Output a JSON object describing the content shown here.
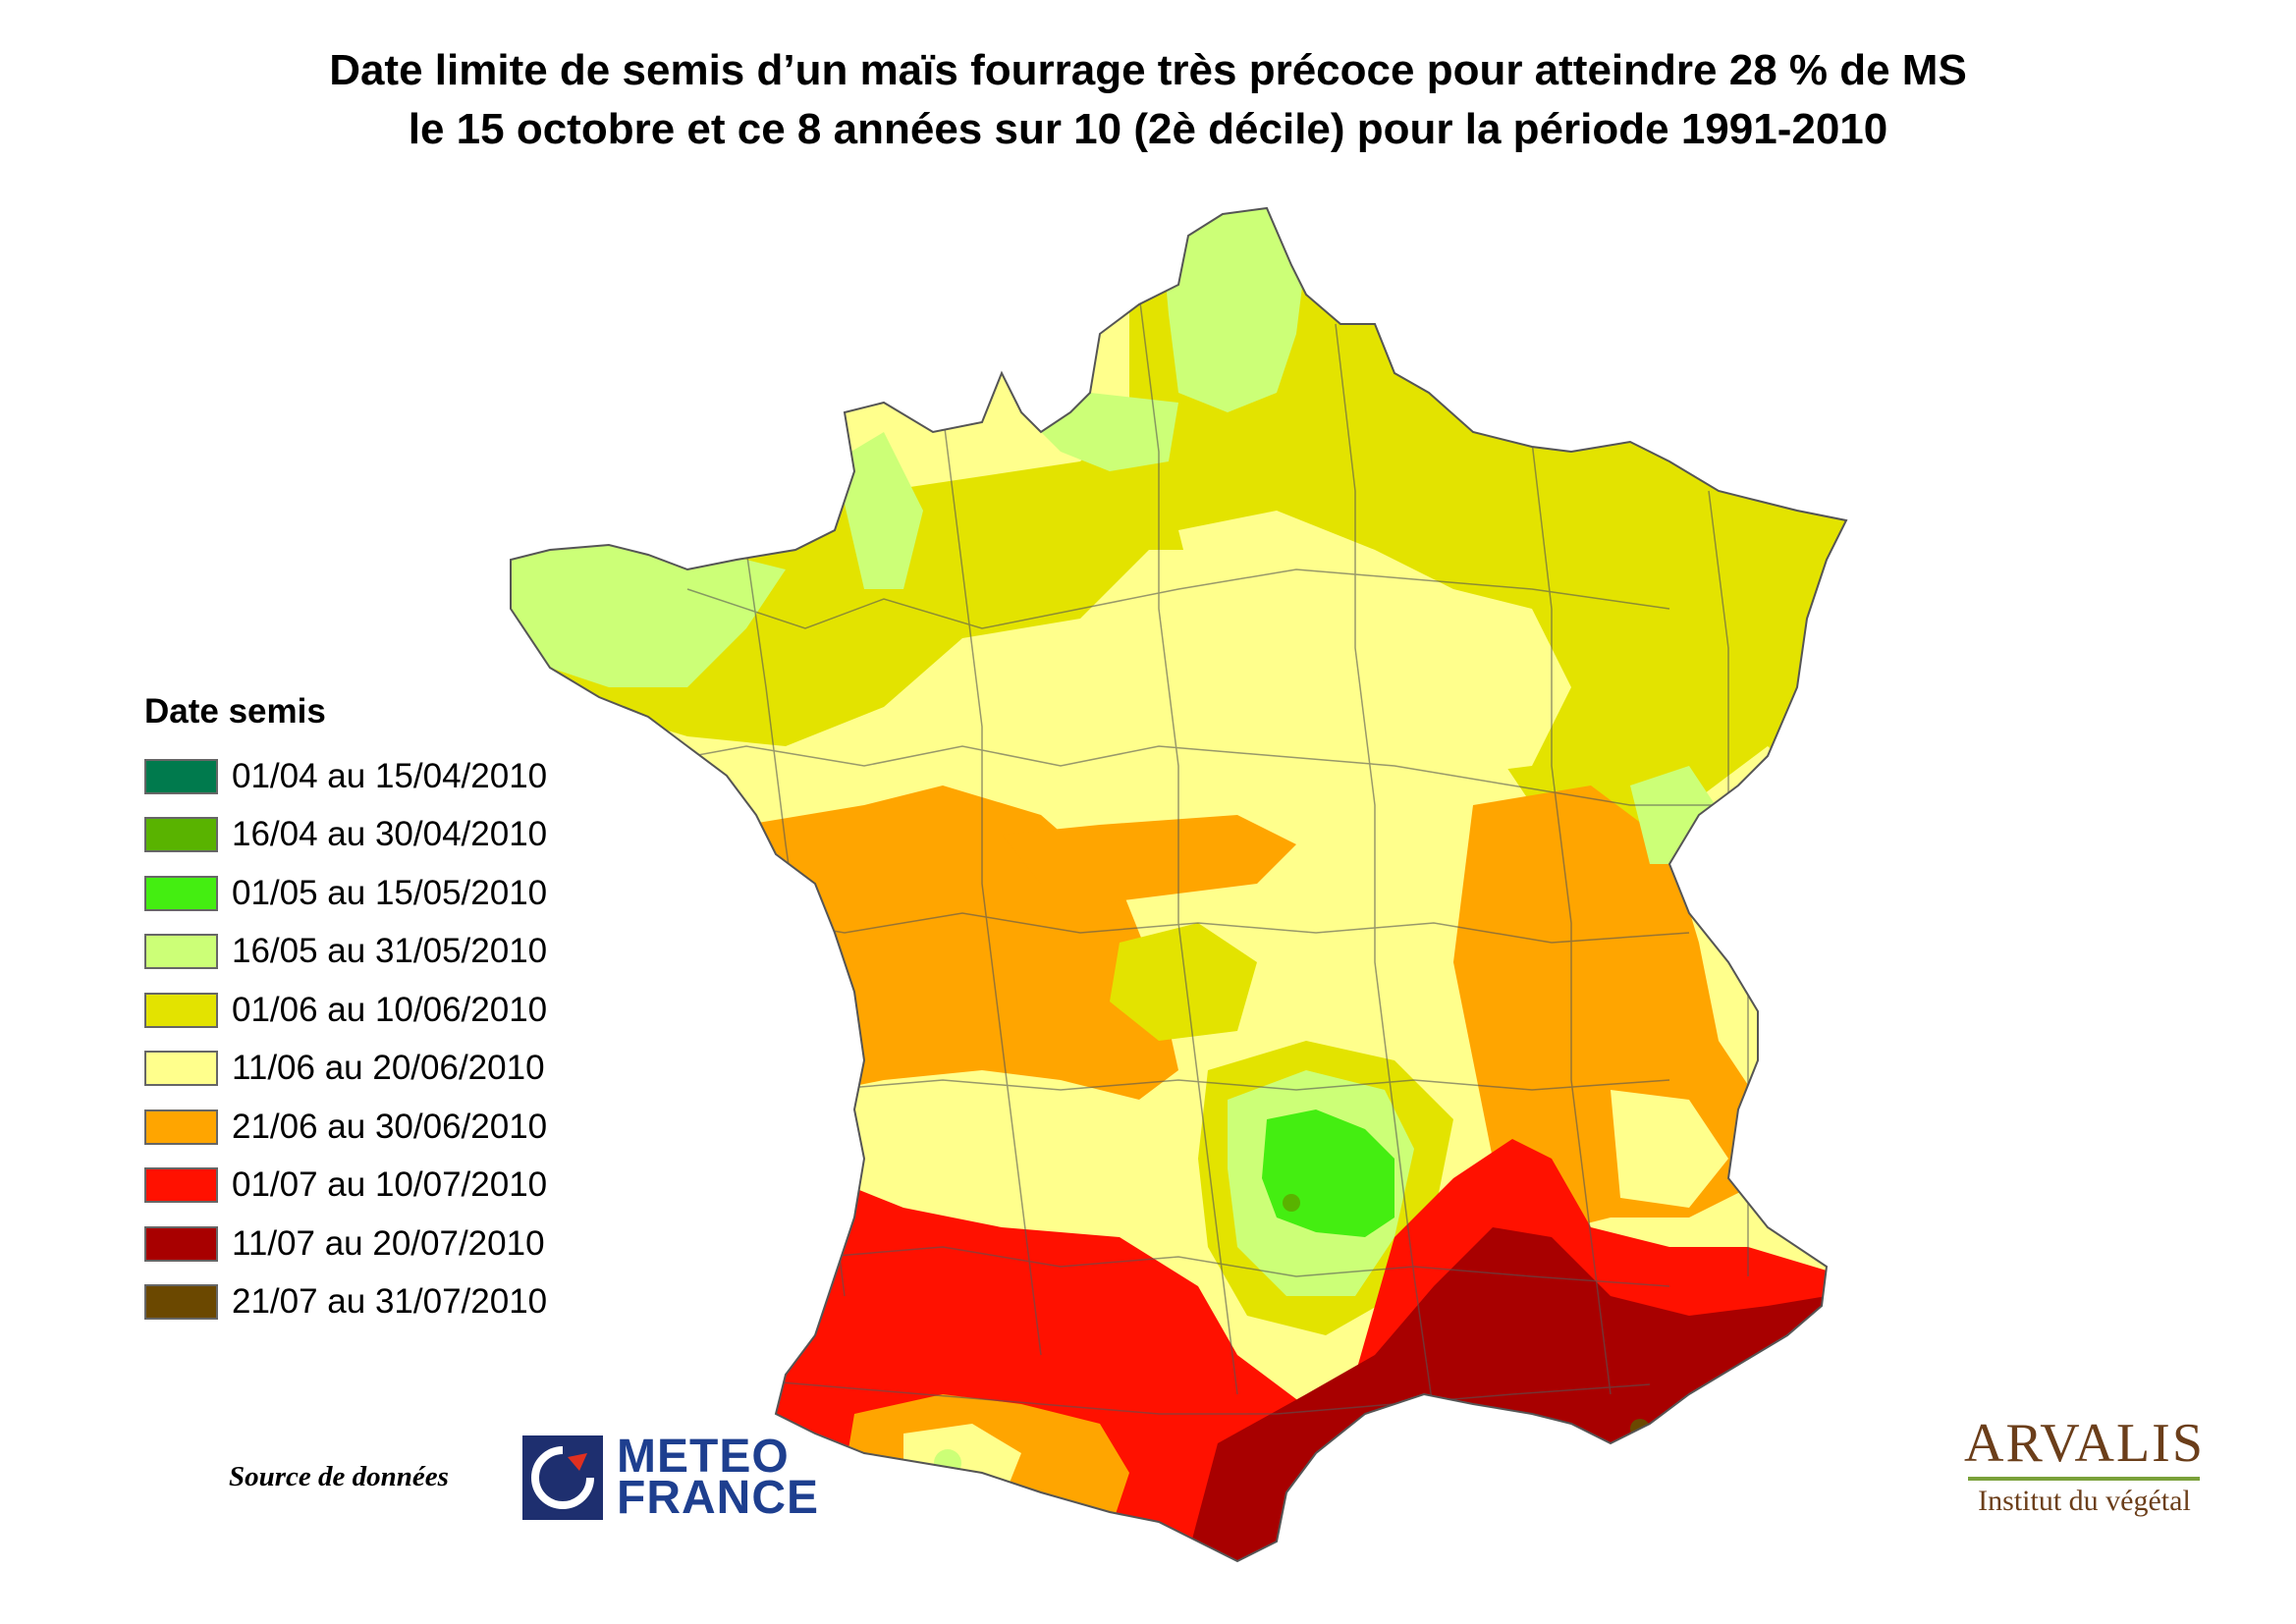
{
  "title": {
    "line1": "Date limite de semis d’un maïs fourrage  très précoce pour atteindre 28 % de MS",
    "line2": "le 15 octobre et ce 8 années sur 10 (2è décile)  pour la période 1991-2010"
  },
  "legend": {
    "title": "Date semis",
    "items": [
      {
        "label": "01/04 au 15/04/2010",
        "color": "#007a4d"
      },
      {
        "label": "16/04 au 30/04/2010",
        "color": "#59b300"
      },
      {
        "label": "01/05 au 15/05/2010",
        "color": "#44ee11"
      },
      {
        "label": "16/05 au 31/05/2010",
        "color": "#ccff77"
      },
      {
        "label": "01/06 au 10/06/2010",
        "color": "#e3e300"
      },
      {
        "label": "11/06 au 20/06/2010",
        "color": "#ffff8c"
      },
      {
        "label": "21/06 au 30/06/2010",
        "color": "#ffa500"
      },
      {
        "label": "01/07 au 10/07/2010",
        "color": "#ff1100"
      },
      {
        "label": "11/07 au 20/07/2010",
        "color": "#a80000"
      },
      {
        "label": "21/07 au 31/07/2010",
        "color": "#6b4800"
      }
    ]
  },
  "source_label": "Source de données",
  "meteo": {
    "line1": "METEO",
    "line2": "FRANCE"
  },
  "arvalis": {
    "name": "ARVALIS",
    "subtitle": "Institut du végétal"
  }
}
